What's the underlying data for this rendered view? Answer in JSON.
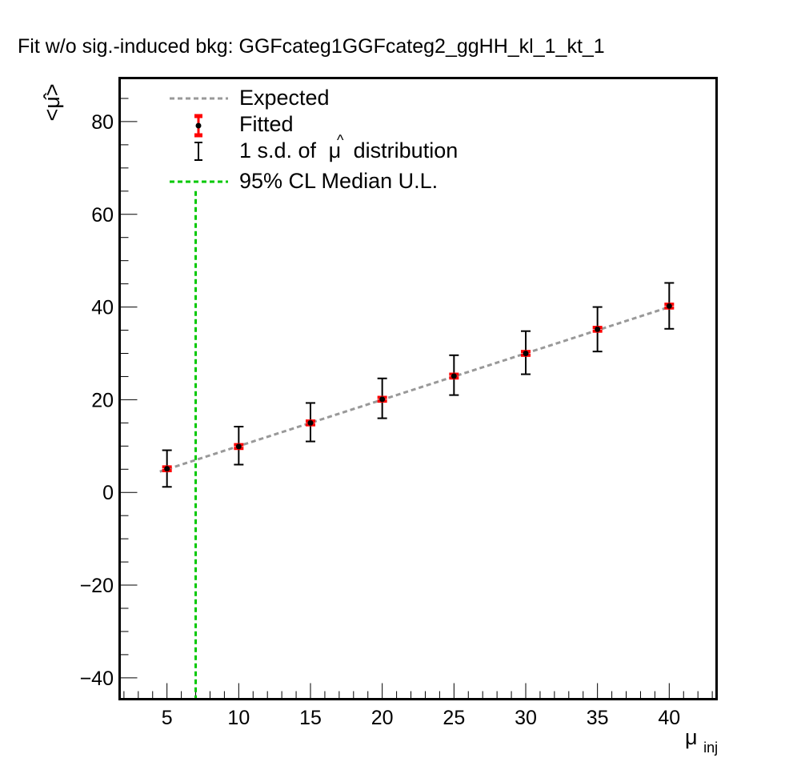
{
  "chart_data": {
    "type": "scatter",
    "title": "Fit w/o sig.-induced bkg: GGFcateg1GGFcateg2_ggHH_kl_1_kt_1",
    "ylabel": "<μ̂>",
    "xlabel_main": "μ",
    "xlabel_sub": "inj",
    "xlim": [
      1.7,
      43.3
    ],
    "ylim": [
      -44.6,
      89.4
    ],
    "x_ticks": [
      5,
      10,
      15,
      20,
      25,
      30,
      35,
      40
    ],
    "y_ticks": [
      -40,
      -20,
      0,
      20,
      40,
      60,
      80
    ],
    "x_tick_labels": [
      "5",
      "10",
      "15",
      "20",
      "25",
      "30",
      "35",
      "40"
    ],
    "y_tick_labels": [
      "−40",
      "−20",
      "0",
      "20",
      "40",
      "60",
      "80"
    ],
    "expected": {
      "x": [
        4.5,
        40
      ],
      "y": [
        4.5,
        40
      ]
    },
    "fitted": {
      "x": [
        5,
        10,
        15,
        20,
        25,
        30,
        35,
        40
      ],
      "y": [
        5.1,
        9.9,
        15.0,
        20.1,
        25.1,
        30.0,
        35.2,
        40.2
      ],
      "err": [
        0.4,
        0.4,
        0.4,
        0.4,
        0.4,
        0.4,
        0.4,
        0.4
      ]
    },
    "sd": {
      "low": [
        1.2,
        6.0,
        11.0,
        16.0,
        21.0,
        25.5,
        30.4,
        35.3
      ],
      "high": [
        9.1,
        14.2,
        19.3,
        24.6,
        29.6,
        34.8,
        40.0,
        45.2
      ]
    },
    "median_ul": {
      "x": 7.0,
      "y_top": 65
    },
    "legend": {
      "expected": "Expected",
      "fitted": "Fitted",
      "sd_prefix": "1 s.d. of",
      "sd_symbol": "μ",
      "sd_suffix": "distribution",
      "median": "95% CL Median U.L."
    },
    "colors": {
      "expected": "#999999",
      "fitted_err": "#ff0000",
      "point": "#000000",
      "sd": "#000000",
      "median": "#00c800"
    }
  }
}
